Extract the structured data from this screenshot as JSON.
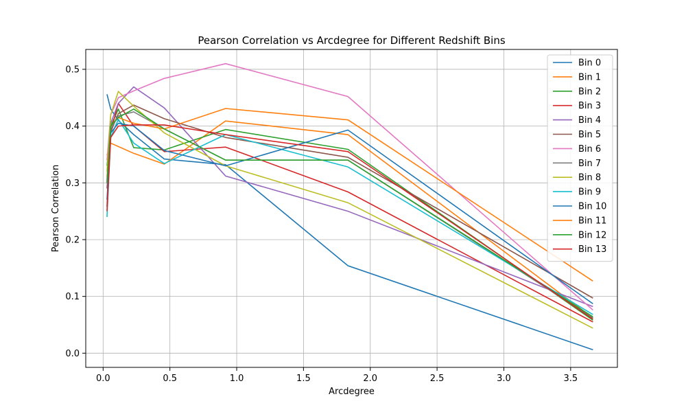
{
  "chart_data": {
    "type": "line",
    "title": "Pearson Correlation vs Arcdegree for Different Redshift Bins",
    "xlabel": "Arcdegree",
    "ylabel": "Pearson Correlation",
    "xlim": [
      -0.13,
      3.85
    ],
    "ylim": [
      -0.025,
      0.535
    ],
    "xticks": [
      0.0,
      0.5,
      1.0,
      1.5,
      2.0,
      2.5,
      3.0,
      3.5
    ],
    "yticks": [
      0.0,
      0.1,
      0.2,
      0.3,
      0.4,
      0.5
    ],
    "xtick_labels": [
      "0.0",
      "0.5",
      "1.0",
      "1.5",
      "2.0",
      "2.5",
      "3.0",
      "3.5"
    ],
    "ytick_labels": [
      "0.0",
      "0.1",
      "0.2",
      "0.3",
      "0.4",
      "0.5"
    ],
    "grid": true,
    "legend_position": "upper right",
    "x": [
      0.029,
      0.057,
      0.114,
      0.229,
      0.458,
      0.917,
      1.833,
      3.667
    ],
    "series": [
      {
        "name": "Bin 0",
        "color": "#1f77b4",
        "values": [
          0.456,
          0.43,
          0.41,
          0.385,
          0.342,
          0.332,
          0.154,
          0.006
        ]
      },
      {
        "name": "Bin 1",
        "color": "#ff7f0e",
        "values": [
          0.349,
          0.37,
          0.364,
          0.352,
          0.333,
          0.409,
          0.385,
          0.062
        ]
      },
      {
        "name": "Bin 2",
        "color": "#2ca02c",
        "values": [
          0.33,
          0.4,
          0.43,
          0.362,
          0.358,
          0.394,
          0.359,
          0.058
        ]
      },
      {
        "name": "Bin 3",
        "color": "#d62728",
        "values": [
          0.258,
          0.39,
          0.44,
          0.4,
          0.355,
          0.363,
          0.284,
          0.055
        ]
      },
      {
        "name": "Bin 4",
        "color": "#9467bd",
        "values": [
          0.305,
          0.405,
          0.44,
          0.469,
          0.432,
          0.312,
          0.25,
          0.082
        ]
      },
      {
        "name": "Bin 5",
        "color": "#8c564b",
        "values": [
          0.29,
          0.39,
          0.422,
          0.437,
          0.413,
          0.38,
          0.345,
          0.097
        ]
      },
      {
        "name": "Bin 6",
        "color": "#e377c2",
        "values": [
          0.34,
          0.42,
          0.45,
          0.462,
          0.484,
          0.51,
          0.452,
          0.076
        ]
      },
      {
        "name": "Bin 7",
        "color": "#7f7f7f",
        "values": [
          0.3,
          0.395,
          0.418,
          0.425,
          0.395,
          0.34,
          0.34,
          0.062
        ]
      },
      {
        "name": "Bin 8",
        "color": "#bcbd22",
        "values": [
          0.32,
          0.42,
          0.461,
          0.435,
          0.388,
          0.33,
          0.265,
          0.044
        ]
      },
      {
        "name": "Bin 9",
        "color": "#17becf",
        "values": [
          0.24,
          0.38,
          0.412,
          0.37,
          0.334,
          0.385,
          0.328,
          0.068
        ]
      },
      {
        "name": "Bin 10",
        "color": "#1f77b4",
        "values": [
          0.27,
          0.388,
          0.405,
          0.4,
          0.357,
          0.33,
          0.393,
          0.087
        ]
      },
      {
        "name": "Bin 11",
        "color": "#ff7f0e",
        "values": [
          0.31,
          0.4,
          0.415,
          0.405,
          0.395,
          0.431,
          0.411,
          0.127
        ]
      },
      {
        "name": "Bin 12",
        "color": "#2ca02c",
        "values": [
          0.3,
          0.4,
          0.415,
          0.43,
          0.395,
          0.34,
          0.34,
          0.064
        ]
      },
      {
        "name": "Bin 13",
        "color": "#d62728",
        "values": [
          0.25,
          0.38,
          0.4,
          0.402,
          0.402,
          0.385,
          0.355,
          0.06
        ]
      }
    ]
  }
}
